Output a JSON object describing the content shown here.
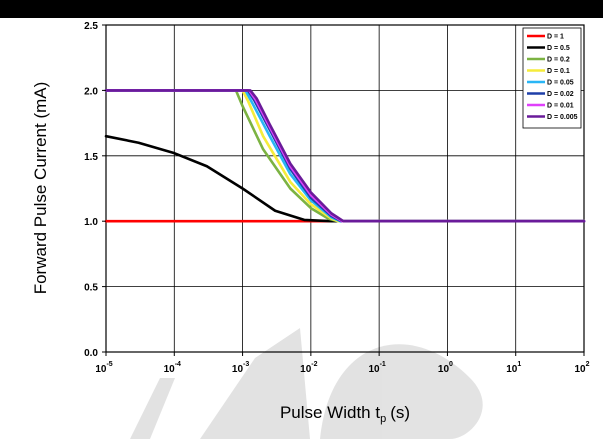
{
  "chart_data": {
    "type": "line",
    "ylabel": "Forward Pulse Current (mA)",
    "xlabel": "Pulse Width t",
    "xlabel_sub": "p",
    "xlabel_unit": "(s)",
    "x_scale": "log",
    "xlim": [
      1e-05,
      100
    ],
    "ylim": [
      0,
      2.5
    ],
    "x_ticks": [
      {
        "value": 1e-05,
        "base": "10",
        "exp": "-5"
      },
      {
        "value": 0.0001,
        "base": "10",
        "exp": "-4"
      },
      {
        "value": 0.001,
        "base": "10",
        "exp": "-3"
      },
      {
        "value": 0.01,
        "base": "10",
        "exp": "-2"
      },
      {
        "value": 0.1,
        "base": "10",
        "exp": "-1"
      },
      {
        "value": 1,
        "base": "10",
        "exp": "0"
      },
      {
        "value": 10,
        "base": "10",
        "exp": "1"
      },
      {
        "value": 100,
        "base": "10",
        "exp": "2"
      }
    ],
    "y_ticks": [
      {
        "value": 0,
        "label": "0.0"
      },
      {
        "value": 0.5,
        "label": "0.5"
      },
      {
        "value": 1.0,
        "label": "1.0"
      },
      {
        "value": 1.5,
        "label": "1.5"
      },
      {
        "value": 2.0,
        "label": "2.0"
      },
      {
        "value": 2.5,
        "label": "2.5"
      }
    ],
    "grid": true,
    "legend_position": "top-right",
    "series": [
      {
        "name": "D = 1",
        "color": "#ff0000",
        "points": [
          [
            1e-05,
            1.0
          ],
          [
            100,
            1.0
          ]
        ]
      },
      {
        "name": "D = 0.5",
        "color": "#000000",
        "points": [
          [
            1e-05,
            1.65
          ],
          [
            3e-05,
            1.6
          ],
          [
            0.0001,
            1.52
          ],
          [
            0.0003,
            1.42
          ],
          [
            0.001,
            1.25
          ],
          [
            0.003,
            1.08
          ],
          [
            0.008,
            1.01
          ],
          [
            0.02,
            1.0
          ],
          [
            100,
            1.0
          ]
        ]
      },
      {
        "name": "D = 0.2",
        "color": "#7cb342",
        "points": [
          [
            1e-05,
            2.0
          ],
          [
            0.0008,
            2.0
          ],
          [
            0.001,
            1.88
          ],
          [
            0.002,
            1.55
          ],
          [
            0.005,
            1.25
          ],
          [
            0.01,
            1.1
          ],
          [
            0.018,
            1.02
          ],
          [
            0.025,
            1.0
          ],
          [
            100,
            1.0
          ]
        ]
      },
      {
        "name": "D = 0.1",
        "color": "#f5ec3b",
        "points": [
          [
            1e-05,
            2.0
          ],
          [
            0.001,
            2.0
          ],
          [
            0.0012,
            1.92
          ],
          [
            0.002,
            1.65
          ],
          [
            0.005,
            1.3
          ],
          [
            0.01,
            1.13
          ],
          [
            0.02,
            1.02
          ],
          [
            0.025,
            1.0
          ],
          [
            100,
            1.0
          ]
        ]
      },
      {
        "name": "D = 0.05",
        "color": "#29b6f6",
        "points": [
          [
            1e-05,
            2.0
          ],
          [
            0.0011,
            2.0
          ],
          [
            0.0014,
            1.9
          ],
          [
            0.0025,
            1.65
          ],
          [
            0.005,
            1.36
          ],
          [
            0.01,
            1.16
          ],
          [
            0.02,
            1.03
          ],
          [
            0.027,
            1.0
          ],
          [
            100,
            1.0
          ]
        ]
      },
      {
        "name": "D = 0.02",
        "color": "#1e3fa8",
        "points": [
          [
            1e-05,
            2.0
          ],
          [
            0.0012,
            2.0
          ],
          [
            0.0015,
            1.92
          ],
          [
            0.0025,
            1.7
          ],
          [
            0.005,
            1.4
          ],
          [
            0.01,
            1.18
          ],
          [
            0.02,
            1.04
          ],
          [
            0.028,
            1.0
          ],
          [
            100,
            1.0
          ]
        ]
      },
      {
        "name": "D = 0.01",
        "color": "#e040fb",
        "points": [
          [
            1e-05,
            2.0
          ],
          [
            0.00125,
            2.0
          ],
          [
            0.00155,
            1.93
          ],
          [
            0.0025,
            1.72
          ],
          [
            0.005,
            1.42
          ],
          [
            0.01,
            1.2
          ],
          [
            0.02,
            1.05
          ],
          [
            0.029,
            1.0
          ],
          [
            100,
            1.0
          ]
        ]
      },
      {
        "name": "D = 0.005",
        "color": "#6a1b9a",
        "points": [
          [
            1e-05,
            2.0
          ],
          [
            0.0013,
            2.0
          ],
          [
            0.0016,
            1.94
          ],
          [
            0.0025,
            1.74
          ],
          [
            0.005,
            1.44
          ],
          [
            0.01,
            1.22
          ],
          [
            0.02,
            1.06
          ],
          [
            0.03,
            1.0
          ],
          [
            100,
            1.0
          ]
        ]
      }
    ]
  }
}
